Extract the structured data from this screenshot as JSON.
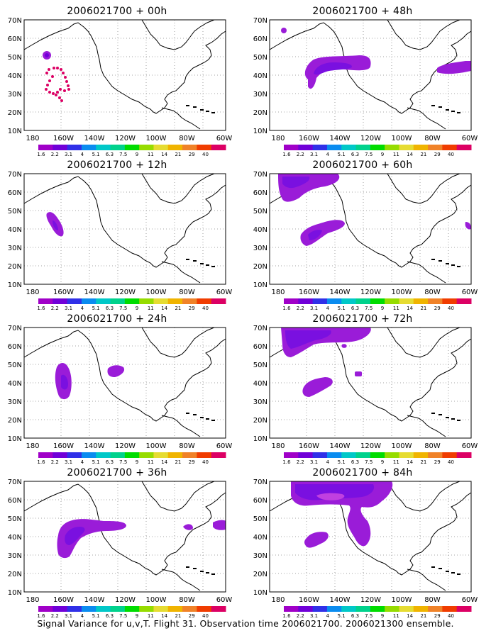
{
  "figure": {
    "caption": "Signal Variance for u,v,T. Flight 31. Observation time 2006021700. 2006021300 ensemble."
  },
  "map_axes": {
    "lon_labels": [
      "180",
      "160W",
      "140W",
      "120W",
      "100W",
      "80W",
      "60W"
    ],
    "lat_labels": [
      "70N",
      "60N",
      "50N",
      "40N",
      "30N",
      "20N",
      "10N"
    ]
  },
  "color_scale": {
    "labels": [
      "1.6",
      "2.2",
      "3.1",
      "4",
      "5.1",
      "6.3",
      "7.5",
      "9",
      "11",
      "14",
      "21",
      "29",
      "40"
    ],
    "colors": [
      "#a000c8",
      "#7000d8",
      "#3030e8",
      "#0a8cf0",
      "#00c8c8",
      "#00d28c",
      "#00dc00",
      "#96dc00",
      "#e6dc32",
      "#f0b400",
      "#f08228",
      "#f03c00",
      "#dc0064"
    ]
  },
  "panels": [
    {
      "title": "2006021700 + 00h"
    },
    {
      "title": "2006021700 + 48h"
    },
    {
      "title": "2006021700 + 12h"
    },
    {
      "title": "2006021700 + 60h"
    },
    {
      "title": "2006021700 + 24h"
    },
    {
      "title": "2006021700 + 72h"
    },
    {
      "title": "2006021700 + 36h"
    },
    {
      "title": "2006021700 + 84h"
    }
  ]
}
